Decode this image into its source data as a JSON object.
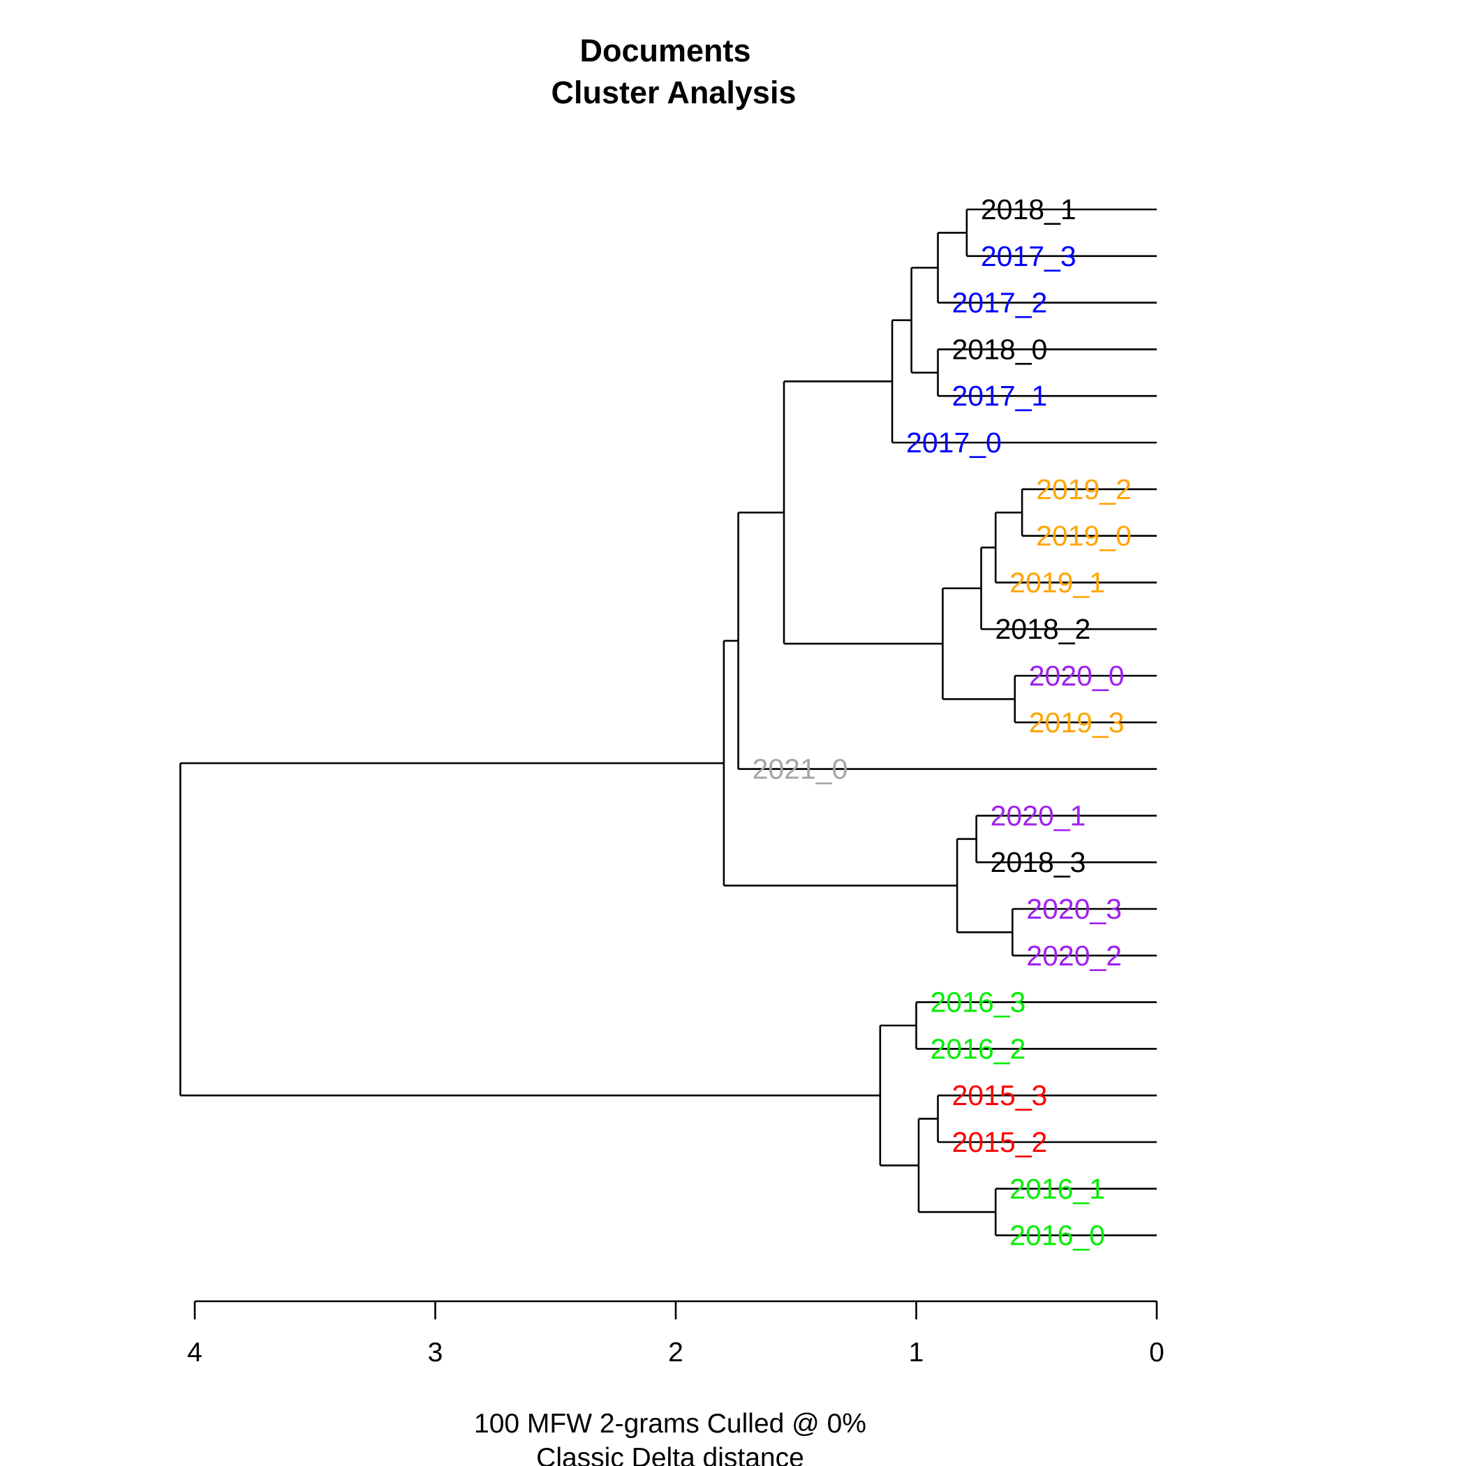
{
  "chart_data": {
    "type": "dendrogram",
    "title_line1": "Documents",
    "title_line2": "Cluster Analysis",
    "xlabel_line1": "100 MFW 2-grams Culled @ 0%",
    "xlabel_line2": "Classic Delta distance",
    "xlim": [
      4,
      0
    ],
    "ticks": [
      "4",
      "3",
      "2",
      "1",
      "0"
    ],
    "tick_values": [
      4,
      3,
      2,
      1,
      0
    ],
    "colors": {
      "2015": "#ff0000",
      "2016": "#00ee00",
      "2017": "#0000ff",
      "2018": "#000000",
      "2019": "#ffa500",
      "2020": "#a020f0",
      "2021": "#a6a6a6"
    },
    "leaves": [
      {
        "label": "2018_1",
        "group": "2018"
      },
      {
        "label": "2017_3",
        "group": "2017"
      },
      {
        "label": "2017_2",
        "group": "2017"
      },
      {
        "label": "2018_0",
        "group": "2018"
      },
      {
        "label": "2017_1",
        "group": "2017"
      },
      {
        "label": "2017_0",
        "group": "2017"
      },
      {
        "label": "2019_2",
        "group": "2019"
      },
      {
        "label": "2019_0",
        "group": "2019"
      },
      {
        "label": "2019_1",
        "group": "2019"
      },
      {
        "label": "2018_2",
        "group": "2018"
      },
      {
        "label": "2020_0",
        "group": "2020"
      },
      {
        "label": "2019_3",
        "group": "2019"
      },
      {
        "label": "2021_0",
        "group": "2021"
      },
      {
        "label": "2020_1",
        "group": "2020"
      },
      {
        "label": "2018_3",
        "group": "2018"
      },
      {
        "label": "2020_3",
        "group": "2020"
      },
      {
        "label": "2020_2",
        "group": "2020"
      },
      {
        "label": "2016_3",
        "group": "2016"
      },
      {
        "label": "2016_2",
        "group": "2016"
      },
      {
        "label": "2015_3",
        "group": "2015"
      },
      {
        "label": "2015_2",
        "group": "2015"
      },
      {
        "label": "2016_1",
        "group": "2016"
      },
      {
        "label": "2016_0",
        "group": "2016"
      }
    ],
    "merges": [
      {
        "id": "m1",
        "children": [
          0,
          1
        ],
        "height": 0.79
      },
      {
        "id": "m2",
        "children": [
          "m1",
          2
        ],
        "height": 0.91
      },
      {
        "id": "m3",
        "children": [
          3,
          4
        ],
        "height": 0.91
      },
      {
        "id": "m4",
        "children": [
          "m2",
          "m3"
        ],
        "height": 1.02
      },
      {
        "id": "m5",
        "children": [
          "m4",
          5
        ],
        "height": 1.1
      },
      {
        "id": "m6",
        "children": [
          6,
          7
        ],
        "height": 0.56
      },
      {
        "id": "m7",
        "children": [
          "m6",
          8
        ],
        "height": 0.67
      },
      {
        "id": "m8",
        "children": [
          "m7",
          9
        ],
        "height": 0.73
      },
      {
        "id": "m9",
        "children": [
          10,
          11
        ],
        "height": 0.59
      },
      {
        "id": "m10",
        "children": [
          "m8",
          "m9"
        ],
        "height": 0.89
      },
      {
        "id": "m11",
        "children": [
          "m5",
          "m10"
        ],
        "height": 1.55
      },
      {
        "id": "m12",
        "children": [
          "m11",
          12
        ],
        "height": 1.74
      },
      {
        "id": "m13",
        "children": [
          13,
          14
        ],
        "height": 0.75
      },
      {
        "id": "m14",
        "children": [
          15,
          16
        ],
        "height": 0.6
      },
      {
        "id": "m15",
        "children": [
          "m13",
          "m14"
        ],
        "height": 0.83
      },
      {
        "id": "m16",
        "children": [
          "m12",
          "m15"
        ],
        "height": 1.8
      },
      {
        "id": "m17",
        "children": [
          17,
          18
        ],
        "height": 1.0
      },
      {
        "id": "m18",
        "children": [
          19,
          20
        ],
        "height": 0.91
      },
      {
        "id": "m19",
        "children": [
          21,
          22
        ],
        "height": 0.67
      },
      {
        "id": "m20",
        "children": [
          "m18",
          "m19"
        ],
        "height": 0.99
      },
      {
        "id": "m21",
        "children": [
          "m17",
          "m20"
        ],
        "height": 1.15
      },
      {
        "id": "m22",
        "children": [
          "m16",
          "m21"
        ],
        "height": 4.06
      }
    ]
  }
}
